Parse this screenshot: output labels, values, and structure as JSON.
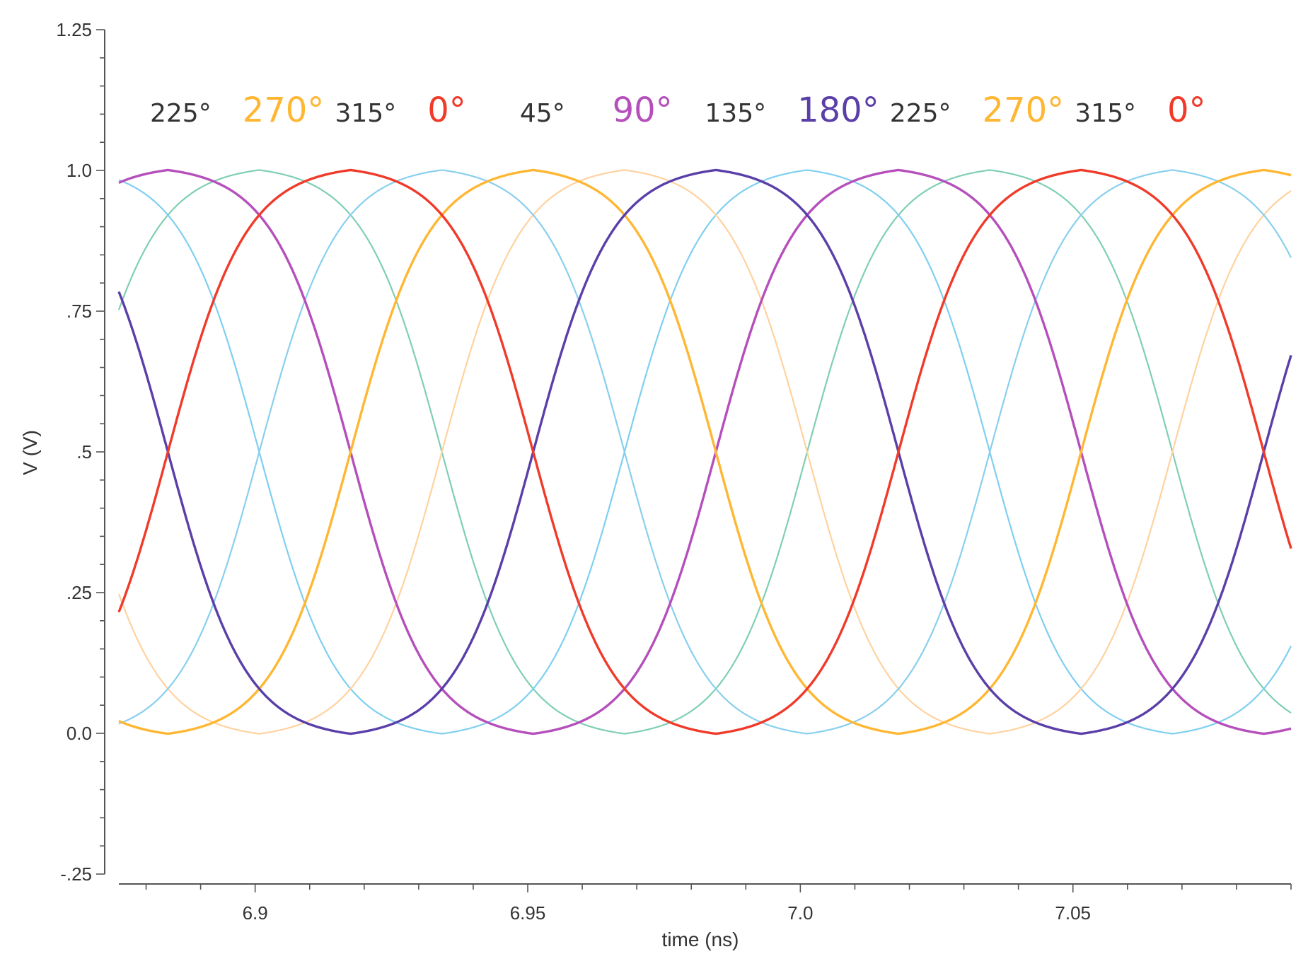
{
  "chart_data": {
    "type": "line",
    "title": "",
    "xlabel": "time (ns)",
    "ylabel": "V (V)",
    "xlim": [
      6.875,
      7.09
    ],
    "ylim": [
      -0.25,
      1.25
    ],
    "grid": false,
    "xticks": [
      {
        "value": 6.9,
        "label": "6.9"
      },
      {
        "value": 6.95,
        "label": "6.95"
      },
      {
        "value": 7.0,
        "label": "7.0"
      },
      {
        "value": 7.05,
        "label": "7.05"
      }
    ],
    "yticks": [
      {
        "value": 1.25,
        "label": "1.25"
      },
      {
        "value": 1.0,
        "label": "1.0"
      },
      {
        "value": 0.75,
        "label": ".75"
      },
      {
        "value": 0.5,
        "label": ".5"
      },
      {
        "value": 0.25,
        "label": ".25"
      },
      {
        "value": 0.0,
        "label": "0.0"
      },
      {
        "value": -0.25,
        "label": "-.25"
      }
    ],
    "signal": {
      "period_ns": 0.134,
      "high_v": 1.01,
      "low_v": -0.01,
      "mid_crossing_0deg_fall_ns": 7.085,
      "mid_crossing_0deg_rise_ns": 7.018
    },
    "series": [
      {
        "phase_deg": 0,
        "color": "#f03a2a"
      },
      {
        "phase_deg": 45,
        "color": "#7fcfb4"
      },
      {
        "phase_deg": 90,
        "color": "#b54fbb"
      },
      {
        "phase_deg": 135,
        "color": "#7fcff0"
      },
      {
        "phase_deg": 180,
        "color": "#5a3fa8"
      },
      {
        "phase_deg": 225,
        "color": "#ffd2a0"
      },
      {
        "phase_deg": 270,
        "color": "#ffb733"
      },
      {
        "phase_deg": 315,
        "color": "#89cfee"
      }
    ],
    "annotations": [
      {
        "text": "225°",
        "color": "#333333",
        "size": "small"
      },
      {
        "text": "270°",
        "color": "#ffb733",
        "size": "large"
      },
      {
        "text": "315°",
        "color": "#333333",
        "size": "small"
      },
      {
        "text": "0°",
        "color": "#f03a2a",
        "size": "large"
      },
      {
        "text": "45°",
        "color": "#333333",
        "size": "small"
      },
      {
        "text": "90°",
        "color": "#b54fbb",
        "size": "large"
      },
      {
        "text": "135°",
        "color": "#333333",
        "size": "small"
      },
      {
        "text": "180°",
        "color": "#5a3fa8",
        "size": "large"
      },
      {
        "text": "225°",
        "color": "#333333",
        "size": "small"
      },
      {
        "text": "270°",
        "color": "#ffb733",
        "size": "large"
      },
      {
        "text": "315°",
        "color": "#333333",
        "size": "small"
      },
      {
        "text": "0°",
        "color": "#f03a2a",
        "size": "large"
      }
    ]
  }
}
